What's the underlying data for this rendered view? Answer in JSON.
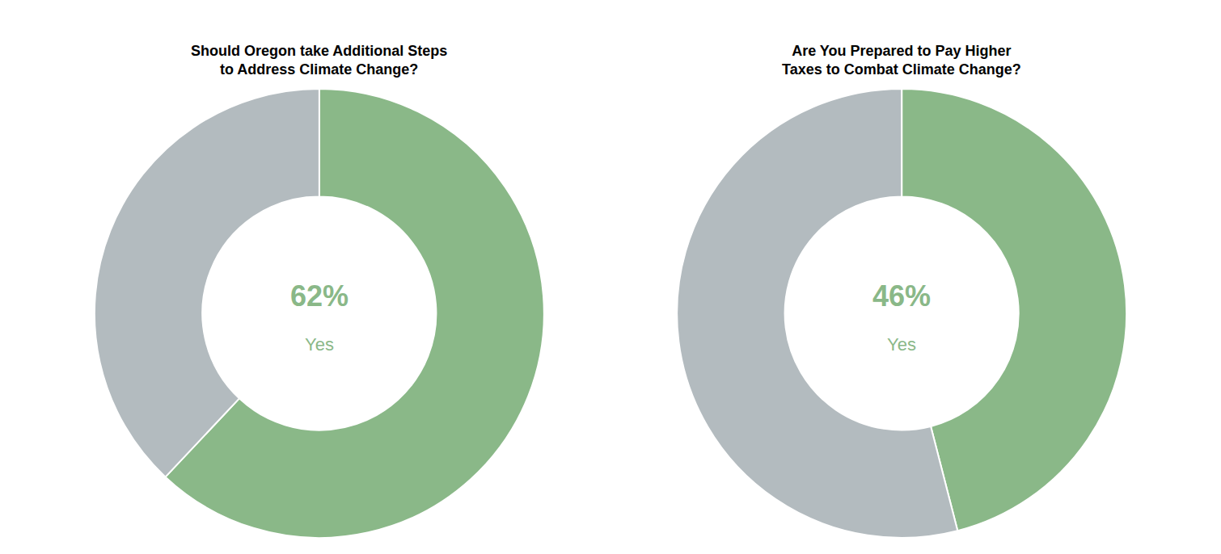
{
  "chart_data": [
    {
      "type": "pie",
      "title": "Should Oregon take Additional Steps\nto Address Climate Change?",
      "values": [
        62,
        38
      ],
      "colors": [
        "#8ab888",
        "#b3bbbf"
      ],
      "annotations": [
        "62%",
        "Yes"
      ]
    },
    {
      "type": "pie",
      "title": "Are You Prepared to Pay Higher\nTaxes to Combat Climate Change?",
      "values": [
        46,
        54
      ],
      "colors": [
        "#8ab888",
        "#b3bbbf"
      ],
      "annotations": [
        "46%",
        "Yes"
      ]
    }
  ]
}
